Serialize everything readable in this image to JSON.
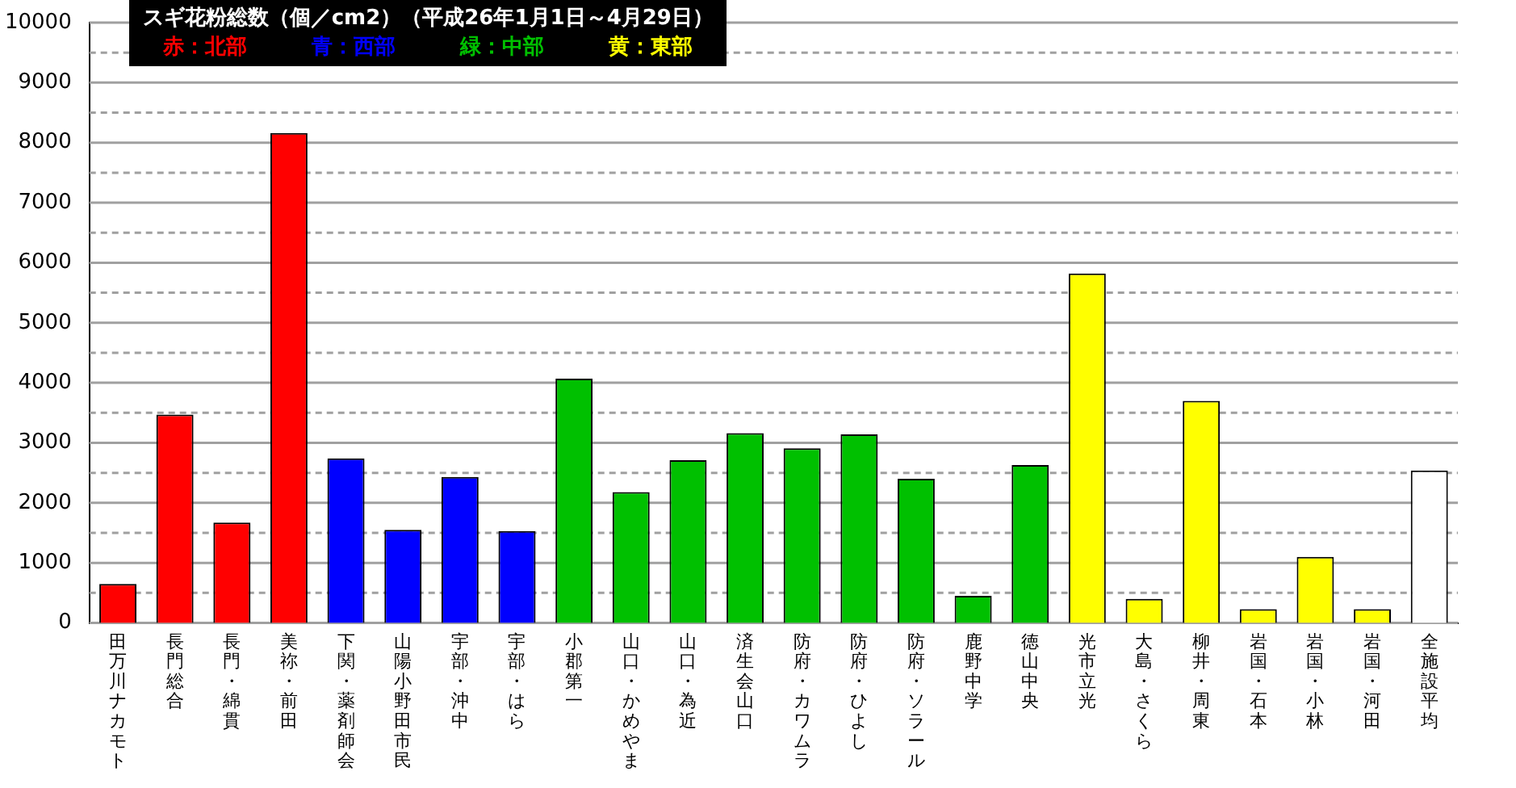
{
  "chart_data": {
    "type": "bar",
    "title": "スギ花粉総数（個／cm2）（平成26年1月1日～4月29日）",
    "categories": [
      "田万川ナカモト",
      "長門総合",
      "長門・綿貫",
      "美祢・前田",
      "下関・薬剤師会",
      "山陽小野田市民",
      "宇部・沖中",
      "宇部・はら",
      "小郡第一",
      "山口・かめやま",
      "山口・為近",
      "済生会山口",
      "防府・カワムラ",
      "防府・ひよし",
      "防府・ソラール",
      "鹿野中学",
      "徳山中央",
      "光市立光",
      "大島・さくら",
      "柳井・周東",
      "岩国・石本",
      "岩国・小林",
      "岩国・河田",
      "全施設平均"
    ],
    "series": [
      {
        "name": "赤：北部",
        "color": "#ff0000",
        "values": [
          650,
          3470,
          1670,
          8160,
          null,
          null,
          null,
          null,
          null,
          null,
          null,
          null,
          null,
          null,
          null,
          null,
          null,
          null,
          null,
          null,
          null,
          null,
          null,
          null
        ]
      },
      {
        "name": "青：西部",
        "color": "#0000ff",
        "values": [
          null,
          null,
          null,
          null,
          2740,
          1550,
          2430,
          1530,
          null,
          null,
          null,
          null,
          null,
          null,
          null,
          null,
          null,
          null,
          null,
          null,
          null,
          null,
          null,
          null
        ]
      },
      {
        "name": "緑：中部",
        "color": "#00c000",
        "values": [
          null,
          null,
          null,
          null,
          null,
          null,
          null,
          null,
          4070,
          2180,
          2710,
          3160,
          2910,
          3140,
          2400,
          450,
          2630,
          null,
          null,
          null,
          null,
          null,
          null,
          null
        ]
      },
      {
        "name": "黄：東部",
        "color": "#ffff00",
        "values": [
          null,
          null,
          null,
          null,
          null,
          null,
          null,
          null,
          null,
          null,
          null,
          null,
          null,
          null,
          null,
          null,
          null,
          5820,
          400,
          3700,
          230,
          1100,
          230,
          null
        ]
      },
      {
        "color": "#ffffff",
        "values": [
          null,
          null,
          null,
          null,
          null,
          null,
          null,
          null,
          null,
          null,
          null,
          null,
          null,
          null,
          null,
          null,
          null,
          null,
          null,
          null,
          null,
          null,
          null,
          2540
        ]
      }
    ],
    "ylim": [
      0,
      10000
    ],
    "yticks": [
      0,
      {
        "value": 500,
        "label": null
      },
      1000,
      {
        "value": 1500,
        "label": null
      },
      2000,
      {
        "value": 2500,
        "label": null
      },
      3000,
      {
        "value": 3500,
        "label": null
      },
      4000,
      {
        "value": 4500,
        "label": null
      },
      5000,
      {
        "value": 5500,
        "label": null
      },
      6000,
      {
        "value": 6500,
        "label": null
      },
      7000,
      {
        "value": 7500,
        "label": null
      },
      8000,
      {
        "value": 8500,
        "label": null
      },
      9000,
      {
        "value": 9500,
        "label": null
      },
      10000
    ],
    "grid": "y",
    "legend": "top left"
  }
}
